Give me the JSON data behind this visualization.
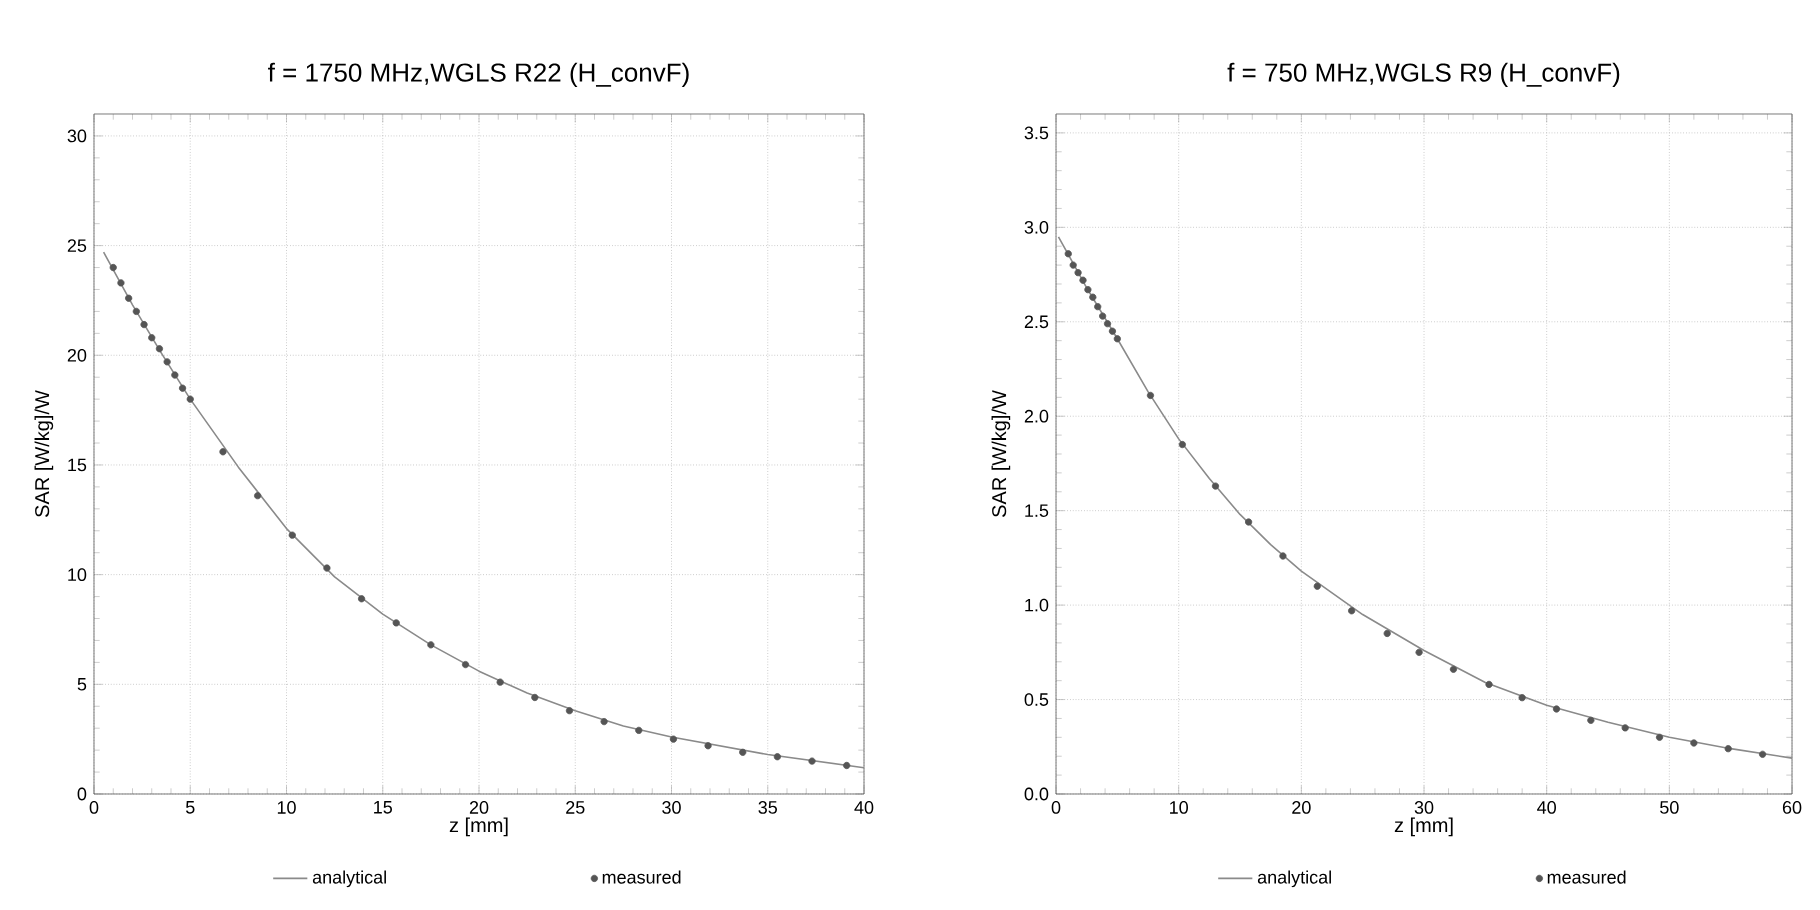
{
  "chart_data": [
    {
      "type": "line",
      "title": "f = 1750 MHz,WGLS R22 (H_convF)",
      "xlabel": "z [mm]",
      "ylabel": "SAR [W/kg]/W",
      "xlim": [
        0,
        40
      ],
      "ylim": [
        0,
        31
      ],
      "xticks": [
        0,
        5,
        10,
        15,
        20,
        25,
        30,
        35,
        40
      ],
      "yticks": [
        0,
        5,
        10,
        15,
        20,
        25,
        30
      ],
      "grid": true,
      "legend": "bottom",
      "series": [
        {
          "name": "analytical",
          "color": "#8a8a8a",
          "marker": "none",
          "x": [
            0.5,
            2,
            3.5,
            5,
            7.5,
            10,
            12.5,
            15,
            17.5,
            20,
            22.5,
            25,
            27.5,
            30,
            32.5,
            35,
            37.5,
            40
          ],
          "values": [
            24.7,
            22.3,
            20.1,
            18.0,
            14.9,
            12.1,
            9.9,
            8.2,
            6.8,
            5.6,
            4.6,
            3.8,
            3.1,
            2.6,
            2.2,
            1.8,
            1.5,
            1.2
          ]
        },
        {
          "name": "measured",
          "type": "scatter",
          "color": "#555555",
          "marker": "circle",
          "x": [
            1,
            1.4,
            1.8,
            2.2,
            2.6,
            3,
            3.4,
            3.8,
            4.2,
            4.6,
            5,
            6.7,
            8.5,
            10.3,
            12.1,
            13.9,
            15.7,
            17.5,
            19.3,
            21.1,
            22.9,
            24.7,
            26.5,
            28.3,
            30.1,
            31.9,
            33.7,
            35.5,
            37.3,
            39.1
          ],
          "values": [
            24,
            23.3,
            22.6,
            22,
            21.4,
            20.8,
            20.3,
            19.7,
            19.1,
            18.5,
            18,
            15.6,
            13.6,
            11.8,
            10.3,
            8.9,
            7.8,
            6.8,
            5.9,
            5.1,
            4.4,
            3.8,
            3.3,
            2.9,
            2.5,
            2.2,
            1.9,
            1.7,
            1.5,
            1.3
          ]
        }
      ]
    },
    {
      "type": "line",
      "title": "f = 750 MHz,WGLS R9 (H_convF)",
      "xlabel": "z [mm]",
      "ylabel": "SAR [W/kg]/W",
      "xlim": [
        0,
        60
      ],
      "ylim": [
        0,
        3.6
      ],
      "xticks": [
        0,
        10,
        20,
        30,
        40,
        50,
        60
      ],
      "yticks": [
        {
          "value": 0,
          "label": "0.0"
        },
        {
          "value": 0.5,
          "label": "0.5"
        },
        {
          "value": 1,
          "label": "1.0"
        },
        {
          "value": 1.5,
          "label": "1.5"
        },
        {
          "value": 2,
          "label": "2.0"
        },
        {
          "value": 2.5,
          "label": "2.5"
        },
        {
          "value": 3,
          "label": "3.0"
        },
        {
          "value": 3.5,
          "label": "3.5"
        }
      ],
      "grid": true,
      "legend": "bottom",
      "series": [
        {
          "name": "analytical",
          "color": "#8a8a8a",
          "marker": "none",
          "x": [
            0.2,
            2.5,
            5,
            7.5,
            10,
            12.5,
            15,
            17.5,
            20,
            25,
            30,
            35,
            40,
            45,
            50,
            55,
            60
          ],
          "values": [
            2.95,
            2.68,
            2.41,
            2.13,
            1.88,
            1.67,
            1.48,
            1.32,
            1.18,
            0.95,
            0.76,
            0.59,
            0.47,
            0.38,
            0.3,
            0.24,
            0.19
          ]
        },
        {
          "name": "measured",
          "type": "scatter",
          "color": "#555555",
          "marker": "circle",
          "x": [
            1,
            1.4,
            1.8,
            2.2,
            2.6,
            3,
            3.4,
            3.8,
            4.2,
            4.6,
            5,
            7.7,
            10.3,
            13,
            15.7,
            18.5,
            21.3,
            24.1,
            27,
            29.6,
            32.4,
            35.3,
            38,
            40.8,
            43.6,
            46.4,
            49.2,
            52,
            54.8,
            57.6
          ],
          "values": [
            2.86,
            2.8,
            2.76,
            2.72,
            2.67,
            2.63,
            2.58,
            2.53,
            2.49,
            2.45,
            2.41,
            2.11,
            1.85,
            1.63,
            1.44,
            1.26,
            1.1,
            0.97,
            0.85,
            0.75,
            0.66,
            0.58,
            0.51,
            0.45,
            0.39,
            0.35,
            0.3,
            0.27,
            0.24,
            0.21
          ]
        }
      ]
    }
  ]
}
